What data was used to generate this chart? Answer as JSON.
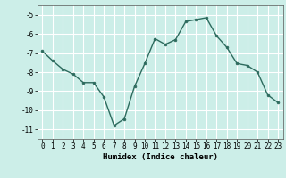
{
  "x": [
    0,
    1,
    2,
    3,
    4,
    5,
    6,
    7,
    8,
    9,
    10,
    11,
    12,
    13,
    14,
    15,
    16,
    17,
    18,
    19,
    20,
    21,
    22,
    23
  ],
  "y": [
    -6.9,
    -7.4,
    -7.85,
    -8.1,
    -8.55,
    -8.55,
    -9.3,
    -10.8,
    -10.45,
    -8.75,
    -7.55,
    -6.25,
    -6.55,
    -6.3,
    -5.35,
    -5.25,
    -5.15,
    -6.1,
    -6.7,
    -7.55,
    -7.65,
    -8.0,
    -9.2,
    -9.6
  ],
  "xlim": [
    -0.5,
    23.5
  ],
  "ylim": [
    -11.5,
    -4.5
  ],
  "yticks": [
    -11,
    -10,
    -9,
    -8,
    -7,
    -6,
    -5
  ],
  "xticks": [
    0,
    1,
    2,
    3,
    4,
    5,
    6,
    7,
    8,
    9,
    10,
    11,
    12,
    13,
    14,
    15,
    16,
    17,
    18,
    19,
    20,
    21,
    22,
    23
  ],
  "xlabel": "Humidex (Indice chaleur)",
  "line_color": "#2d6b5e",
  "marker_color": "#2d6b5e",
  "bg_color": "#cceee8",
  "grid_color": "#ffffff",
  "tick_fontsize": 5.5,
  "label_fontsize": 6.5,
  "fig_width": 3.2,
  "fig_height": 2.0,
  "dpi": 100
}
